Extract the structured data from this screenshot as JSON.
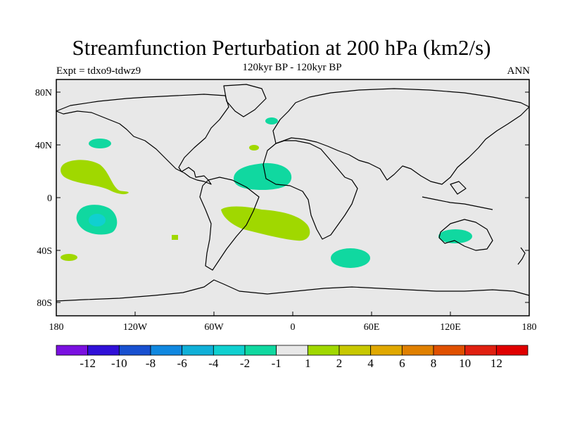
{
  "header": {
    "title": "Streamfunction Perturbation at 200 hPa (km2/s)",
    "subtitle": "120kyr BP - 120kyr BP",
    "experiment": "Expt = tdxo9-tdwz9",
    "season": "ANN"
  },
  "axes": {
    "x_ticks": [
      "180",
      "120W",
      "60W",
      "0",
      "60E",
      "120E",
      "180"
    ],
    "y_ticks": [
      "80N",
      "40N",
      "0",
      "40S",
      "80S"
    ],
    "lon_range": [
      -180,
      180
    ],
    "lat_range": [
      -90,
      90
    ]
  },
  "colorbar": {
    "labels": [
      "-12",
      "-10",
      "-8",
      "-6",
      "-4",
      "-2",
      "-1",
      "1",
      "2",
      "4",
      "6",
      "8",
      "10",
      "12"
    ],
    "colors": [
      "#7a10e0",
      "#3010d8",
      "#1850d0",
      "#1088e0",
      "#10b0d8",
      "#10d0d0",
      "#10d8a0",
      "#e8e8e8",
      "#a0d800",
      "#c8c800",
      "#e0a800",
      "#e08000",
      "#e05000",
      "#e02010",
      "#e00000"
    ]
  },
  "map_colors": {
    "background": "#e8e8e8",
    "pos_1_2": "#a0d800",
    "neg_1_2": "#10d8a0",
    "neg_2_4": "#10d0d0"
  }
}
